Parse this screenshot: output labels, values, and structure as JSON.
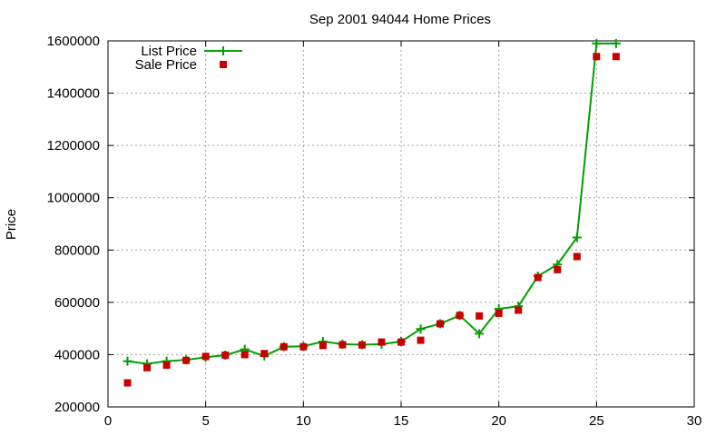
{
  "chart_data": {
    "type": "line",
    "title": "Sep 2001 94044 Home Prices",
    "xlabel": "",
    "ylabel": "Price",
    "xlim": [
      0,
      30
    ],
    "ylim": [
      200000,
      1600000
    ],
    "xticks": [
      0,
      5,
      10,
      15,
      20,
      25,
      30
    ],
    "yticks": [
      200000,
      400000,
      600000,
      800000,
      1000000,
      1200000,
      1400000,
      1600000
    ],
    "grid": true,
    "legend_position": "top-left",
    "series": [
      {
        "name": "List Price",
        "style": "line-with-plus-markers",
        "color": "#00a000",
        "x": [
          1,
          2,
          3,
          4,
          5,
          6,
          7,
          8,
          9,
          10,
          11,
          12,
          13,
          14,
          15,
          16,
          17,
          18,
          19,
          20,
          21,
          22,
          23,
          24,
          25,
          26
        ],
        "values": [
          375000,
          365000,
          375000,
          380000,
          390000,
          398000,
          420000,
          395000,
          430000,
          432000,
          450000,
          440000,
          438000,
          440000,
          450000,
          498000,
          518000,
          550000,
          480000,
          575000,
          585000,
          700000,
          745000,
          848000,
          1590000,
          1590000
        ]
      },
      {
        "name": "Sale Price",
        "style": "scatter-square",
        "color": "#c80000",
        "x": [
          1,
          2,
          3,
          4,
          5,
          6,
          7,
          8,
          9,
          10,
          11,
          12,
          13,
          14,
          15,
          16,
          17,
          18,
          19,
          20,
          21,
          22,
          23,
          24,
          25,
          26
        ],
        "values": [
          292000,
          350000,
          360000,
          378000,
          393000,
          398000,
          400000,
          404000,
          430000,
          430000,
          435000,
          438000,
          437000,
          448000,
          448000,
          455000,
          518000,
          550000,
          548000,
          558000,
          570000,
          695000,
          725000,
          775000,
          1540000,
          1540000
        ]
      }
    ]
  }
}
